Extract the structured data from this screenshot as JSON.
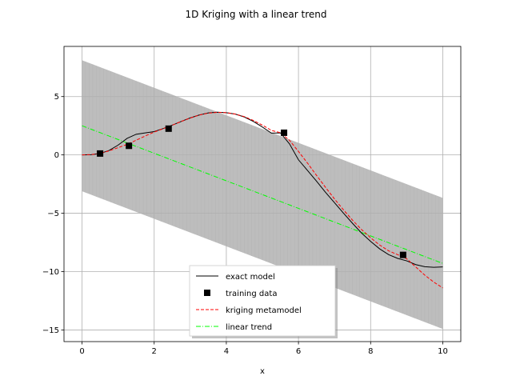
{
  "chart_data": {
    "type": "line",
    "title": "1D Kriging with a linear trend",
    "xlabel": "x",
    "ylabel": "",
    "xlim": [
      -0.5,
      10.5
    ],
    "ylim": [
      -16,
      9.3
    ],
    "xticks": [
      0,
      2,
      4,
      6,
      8,
      10
    ],
    "yticks": [
      -15,
      -10,
      -5,
      0,
      5
    ],
    "grid": true,
    "legend_position": "lower center",
    "colors": {
      "exact_model": "#000000",
      "training_data": "#000000",
      "kriging": "#ff0000",
      "trend": "#00ff00",
      "band": "#bdbdbd"
    },
    "series": [
      {
        "name": "exact model",
        "style": "solid",
        "x": [
          0.0,
          0.25,
          0.5,
          0.75,
          1.0,
          1.25,
          1.5,
          1.75,
          2.0,
          2.25,
          2.5,
          2.75,
          3.0,
          3.25,
          3.5,
          3.75,
          4.0,
          4.25,
          4.5,
          4.75,
          5.0,
          5.25,
          5.5,
          5.75,
          6.0,
          6.25,
          6.5,
          6.75,
          7.0,
          7.25,
          7.5,
          7.75,
          8.0,
          8.25,
          8.5,
          8.75,
          9.0,
          9.25,
          9.5,
          9.75,
          10.0
        ],
        "y": [
          0.0,
          0.016,
          0.12,
          0.38,
          0.84,
          1.42,
          1.77,
          1.89,
          2.0,
          2.26,
          2.55,
          2.87,
          3.17,
          3.42,
          3.6,
          3.66,
          3.62,
          3.5,
          3.25,
          2.87,
          2.39,
          1.87,
          1.89,
          0.95,
          -0.42,
          -1.33,
          -2.25,
          -3.21,
          -4.1,
          -5.0,
          -5.87,
          -6.7,
          -7.41,
          -8.05,
          -8.55,
          -8.87,
          -9.08,
          -9.4,
          -9.58,
          -9.63,
          -9.6
        ]
      },
      {
        "name": "training data",
        "style": "markers",
        "x": [
          0.5,
          1.3,
          2.4,
          5.6,
          8.9
        ],
        "y": [
          0.12,
          0.78,
          2.25,
          1.9,
          -8.57
        ]
      },
      {
        "name": "kriging metamodel",
        "style": "dashed",
        "x": [
          0.0,
          0.25,
          0.5,
          0.75,
          1.0,
          1.25,
          1.5,
          1.75,
          2.0,
          2.25,
          2.5,
          2.75,
          3.0,
          3.25,
          3.5,
          3.75,
          4.0,
          4.25,
          4.5,
          4.75,
          5.0,
          5.25,
          5.5,
          5.75,
          6.0,
          6.25,
          6.5,
          6.75,
          7.0,
          7.25,
          7.5,
          7.75,
          8.0,
          8.25,
          8.5,
          8.75,
          9.0,
          9.25,
          9.5,
          9.75,
          10.0
        ],
        "y": [
          0.0,
          0.03,
          0.12,
          0.35,
          0.62,
          0.9,
          1.26,
          1.62,
          1.96,
          2.25,
          2.55,
          2.87,
          3.16,
          3.42,
          3.58,
          3.65,
          3.62,
          3.5,
          3.28,
          2.95,
          2.55,
          2.1,
          1.9,
          1.25,
          0.3,
          -0.7,
          -1.75,
          -2.78,
          -3.78,
          -4.72,
          -5.6,
          -6.4,
          -7.1,
          -7.72,
          -8.22,
          -8.55,
          -8.9,
          -9.6,
          -10.3,
          -10.9,
          -11.4
        ]
      },
      {
        "name": "linear trend",
        "style": "dashdot",
        "x": [
          0,
          10
        ],
        "y": [
          2.5,
          -9.3
        ]
      }
    ],
    "band": {
      "x": [
        0,
        10
      ],
      "upper": [
        8.1,
        -3.7
      ],
      "lower": [
        -3.1,
        -14.9
      ]
    }
  }
}
